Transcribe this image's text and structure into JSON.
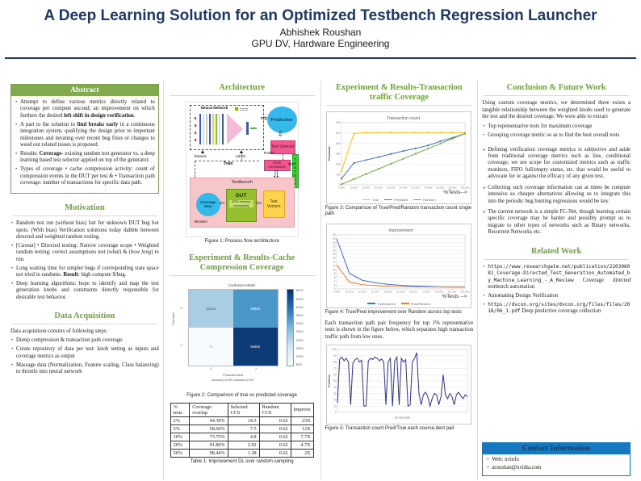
{
  "header": {
    "title": "A Deep Learning Solution for an Optimized Testbench Regression Launcher",
    "author": "Abhishek Roushan",
    "affiliation": "GPU DV, Hardware Engineering"
  },
  "colors": {
    "title_navy": "#1f3864",
    "heading_green": "#6ea23e",
    "abstract_header_bg": "#81aa4f",
    "contact_header_bg": "#1878be",
    "true_series": "#ffc000",
    "predicted_series": "#4472c4",
    "random_series": "#70ad47",
    "pred_random_series": "#ed7d31",
    "fig5_series": "#2e3192"
  },
  "abstract": {
    "heading": "Abstract",
    "items": [
      [
        "Attempt to define various metrics directly related to coverage per compute second; an improvement on which furthers the desired ",
        {
          "t": "left shift in design verification",
          "b": 1
        },
        "."
      ],
      [
        "A part to the solution to ",
        {
          "t": "find breaks early",
          "b": 1
        },
        " in a continuous integration system, qualifying the design prior to important milestones and iterating over recent bug fixes or changes to weed out related issues is proposed."
      ],
      [
        "Results: ",
        {
          "t": "Coverage",
          "b": 1
        },
        "- existing random test generator vs. a deep learning based test selector applied on top of the generator."
      ],
      [
        "Types of coverage • cache compression activity: count of compression events in the DUT per test & • Transaction path coverage: number of transactions for specific data path."
      ]
    ]
  },
  "motivation": {
    "heading": "Motivation",
    "items": [
      [
        "Random test run (without bias) fair for unknown DUT bug hot spots. (With bias) Verification solutions today dabble between directed and weighted random testing."
      ],
      [
        "[",
        {
          "t": "Caveat",
          "i": 1
        },
        "] • Directed testing: Narrow coverage scope • Weighted random testing: correct assumptions test (",
        {
          "t": "what",
          "i": 1
        },
        ") & (",
        {
          "t": "how long",
          "i": 1
        },
        ") to run."
      ],
      [
        "Long waiting time for simpler bugs if corresponding state space not tried in randoms. ",
        {
          "t": "Result",
          "b": 1
        },
        ": high compute $/bug."
      ],
      [
        "Deep learning algorithms: hope to identify and map the test generation knobs and constraints directly responsible for desirable test behavior."
      ]
    ]
  },
  "data_acquisition": {
    "heading": "Data Acquisition",
    "intro": "Data acquisition consists of following steps:",
    "items": [
      [
        "Dump compression & transaction path coverage."
      ],
      [
        "Create repository of data per test: knob setting as inputs and coverage metrics as output"
      ],
      [
        "Massage data (Normalization, Feature scaling, Class balancing) to throttle into neural network"
      ]
    ]
  },
  "architecture": {
    "heading": "Architecture",
    "caption": "Figure 1: Process flow architecture",
    "labels": {
      "neural_network": "Neural Network",
      "prediction": "Prediction",
      "test_selector": "Test Selector",
      "knob_constraints": "Knob constraints",
      "testgen": "TESTGEN",
      "testbench": "Testbench",
      "coverage_data": "Coverage Data",
      "dut": "DUT",
      "dut_sub": "[GPU memory subsystem]",
      "test_vectors": "Test Vectors",
      "monitors": "Monitors",
      "features": "features",
      "labels": "Labels",
      "predict": "Predict",
      "train": "Train"
    }
  },
  "cache_results": {
    "heading": "Experiment & Results-Cache Compression Coverage",
    "figure_caption": "Figure 2: Comparison of true vs predicted coverage",
    "table_caption": "Table 1: Improvement DL over random sampling",
    "table": {
      "headers": [
        "% tests",
        "Coverage overlap",
        "Selected CCS",
        "Random CCS",
        "Improve"
      ],
      "rows": [
        [
          "2%",
          "44.39%",
          "14.3",
          "0.62",
          "23X"
        ],
        [
          "5%",
          "58.69%",
          "7.5",
          "0.62",
          "12X"
        ],
        [
          "10%",
          "73.75%",
          "4.8",
          "0.62",
          "7.7X"
        ],
        [
          "20%",
          "91.80%",
          "2.92",
          "0.62",
          "4.7X"
        ],
        [
          "50%",
          "98.44%",
          "1.28",
          "0.62",
          "2X"
        ]
      ]
    }
  },
  "transaction_results": {
    "heading": "Experiment & Results-Transaction traffic Coverage",
    "figure3_caption": "Figure 3: Comparison of True/Pred/Random transaction count single path",
    "figure4_caption": "Figure 4: True/Pred improvement over Random across top tests",
    "paragraph": "Each transaction path pair frequency for top 1% representative tests is shown in the figure below, which separates high transaction traffic path from low ones.",
    "figure5_caption": "Figure 5: Transaction count Pred/True each source-dest pair"
  },
  "conclusion": {
    "heading": "Conclusion & Future Work",
    "intro": "Using custom coverage metrics, we determined there exists a tangible relationship between the weighted knobs used to generate the test and the desired coverage. We were able to extract",
    "bullets": [
      [
        "Top representative tests for maximum coverage"
      ],
      [
        "Grouping coverage metric so as to find the best overall tests"
      ]
    ],
    "future_items": [
      [
        "Defining verification coverage metrics is subjective and aside from traditional coverage metrics such as line, conditional coverage, we see scope for customized metrics such as traffic monitors, FIFO full/empty status, etc. that would be useful to advocate for or against the efficacy of any given test."
      ],
      [
        "Collecting such coverage information can at times be compute intensive so cheaper alternatives allowing us to integrate this into the periodic bug hunting regressions would be key."
      ],
      [
        "The current network is a simple FC-Net, though learning certain specific coverage may be harder and possibly prompt us to migrate to other types of networks such as Binary networks, Recurrent Networks etc."
      ]
    ]
  },
  "related_work": {
    "heading": "Related Work",
    "items": [
      [
        {
          "t": "https://www.researchgate.net/publication/220306081_Coverage-Directed_Test_Generation_Automated_by_Machine_Learning_-_A_Review",
          "m": 1
        },
        " Coverage directed testbench automation"
      ],
      [
        "Automating Design Verification"
      ],
      [
        {
          "t": "https://dvcon.org/sites/dvcon.org/files/files/2018/06_1.pdf",
          "m": 1
        },
        " Deep predictive coverage collection"
      ]
    ]
  },
  "contact": {
    "heading": "Contact Information",
    "items": [
      [
        "Web: nvinfo"
      ],
      [
        "aroushan@nvidia.com"
      ]
    ]
  },
  "chart_data": [
    {
      "type": "line",
      "title": "Transaction count",
      "ylabel": "Thousands",
      "xlabel": "%Tests-->",
      "x": [
        "0.00%",
        "10.00%",
        "20.00%",
        "30.00%",
        "40.00%",
        "50.00%",
        "60.00%",
        "70.00%",
        "80.00%",
        "90.00%",
        "100.00%"
      ],
      "ylim": [
        0,
        600
      ],
      "ytick": 100,
      "grid": true,
      "legend_position": "bottom",
      "series": [
        {
          "name": "True",
          "color": "#ffc000",
          "marker": true,
          "values": [
            130,
            495,
            505,
            505,
            505,
            505,
            505,
            505,
            505,
            505,
            505
          ]
        },
        {
          "name": "Predicted",
          "color": "#4472c4",
          "marker": true,
          "values": [
            60,
            210,
            240,
            268,
            298,
            326,
            352,
            380,
            420,
            455,
            495
          ]
        },
        {
          "name": "Random",
          "color": "#70ad47",
          "marker": true,
          "values": [
            5,
            55,
            105,
            153,
            203,
            251,
            300,
            349,
            398,
            447,
            495
          ]
        }
      ]
    },
    {
      "type": "line",
      "title": "Improvement",
      "ylabel": "",
      "xlabel": "%Tests -->",
      "x": [
        "1.00%",
        "10.00%",
        "20.00%",
        "30.00%",
        "40.00%",
        "50.00%",
        "60.00%",
        "70.00%",
        "80.00%",
        "90.00%",
        "100.00%"
      ],
      "ylim": [
        0,
        28
      ],
      "ytick": 2,
      "grid": true,
      "legend_position": "bottom",
      "series": [
        {
          "name": "True/random",
          "color": "#4472c4",
          "values": [
            26,
            8,
            4.5,
            3.2,
            2.4,
            1.9,
            1.5,
            1.3,
            1.1,
            1,
            1
          ]
        },
        {
          "name": "Pred/Random",
          "color": "#ed7d31",
          "values": [
            12.5,
            3.5,
            2.2,
            1.7,
            1.4,
            1.2,
            1.1,
            1,
            1,
            0.9,
            0.9
          ]
        }
      ]
    },
    {
      "type": "line",
      "title": "",
      "ylabel": "Pred/True",
      "xlabel_small": "src-dest pairs",
      "x": [],
      "show_xticks": false,
      "ylim": [
        0,
        100
      ],
      "ytick": 10,
      "grid": true,
      "legend_position": "none",
      "series": [
        {
          "name": "Pred/True",
          "color": "#2e3192",
          "values": [
            15,
            85,
            88,
            82,
            86,
            80,
            12,
            78,
            84,
            86,
            80,
            83,
            10,
            10,
            82,
            86,
            84,
            88,
            86,
            82,
            85,
            80,
            12,
            80,
            86,
            10,
            82,
            88,
            12,
            86,
            80,
            84,
            10,
            12,
            80,
            86,
            95,
            30,
            12,
            28,
            32,
            25,
            10,
            22,
            30,
            28,
            12,
            25,
            60,
            28,
            22,
            30,
            25,
            12,
            28,
            32,
            26,
            22,
            28,
            25
          ]
        }
      ]
    },
    {
      "type": "heatmap",
      "title": "Confusion Matrix",
      "xlabel": "Predicted label",
      "ylabel": "True label",
      "x_ticks": [
        "0",
        "1"
      ],
      "y_ticks": [
        "0",
        "1"
      ],
      "cells": [
        [
          "46133",
          "10948"
        ],
        [
          "72",
          "56453"
        ]
      ],
      "cell_colors": [
        [
          "#a9cde3",
          "#4a98c9"
        ],
        [
          "#f7fbfe",
          "#0c3b77"
        ]
      ],
      "cell_text_colors": [
        [
          "#39536b",
          "#ffffff"
        ],
        [
          "#9aa7b3",
          "#ffffff"
        ]
      ],
      "footnote": "accuracy=0.903; misclass=0.097",
      "colorbar_ticks": [
        "50000",
        "45000",
        "40000",
        "35000",
        "30000",
        "25000",
        "20000",
        "15000",
        "10000",
        "5000"
      ]
    }
  ]
}
